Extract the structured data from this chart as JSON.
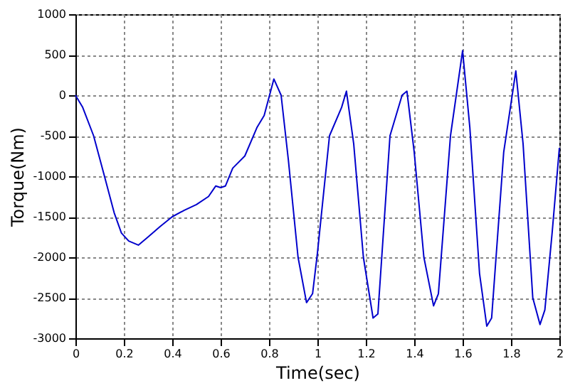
{
  "chart_data": {
    "type": "line",
    "xlabel": "Time(sec)",
    "ylabel": "Torque(Nm)",
    "xlim": [
      0,
      2
    ],
    "xticks": [
      0,
      0.2,
      0.4,
      0.6,
      0.8,
      1,
      1.2,
      1.4,
      1.6,
      1.8,
      2
    ],
    "ylim": [
      -3000,
      1000
    ],
    "yticks": [
      -3000,
      -2500,
      -2000,
      -1500,
      -1000,
      -500,
      0,
      500,
      1000
    ],
    "grid": true,
    "marker": "none",
    "line_style": "solid",
    "series": [
      {
        "color": "#0000cc",
        "x": [
          0,
          0.03,
          0.075,
          0.12,
          0.16,
          0.19,
          0.22,
          0.26,
          0.3,
          0.35,
          0.4,
          0.45,
          0.5,
          0.55,
          0.58,
          0.6,
          0.62,
          0.65,
          0.7,
          0.75,
          0.78,
          0.82,
          0.85,
          0.88,
          0.92,
          0.955,
          0.98,
          1.0,
          1.05,
          1.1,
          1.12,
          1.15,
          1.19,
          1.23,
          1.25,
          1.3,
          1.35,
          1.37,
          1.4,
          1.44,
          1.48,
          1.5,
          1.55,
          1.6,
          1.63,
          1.67,
          1.7,
          1.72,
          1.77,
          1.82,
          1.85,
          1.89,
          1.92,
          1.94,
          1.97,
          2.0
        ],
        "values": [
          0,
          -150,
          -500,
          -1000,
          -1450,
          -1700,
          -1800,
          -1850,
          -1750,
          -1620,
          -1500,
          -1420,
          -1350,
          -1250,
          -1120,
          -1140,
          -1120,
          -900,
          -750,
          -400,
          -250,
          200,
          0,
          -800,
          -2000,
          -2560,
          -2450,
          -1950,
          -500,
          -150,
          50,
          -600,
          -2000,
          -2750,
          -2700,
          -500,
          0,
          50,
          -700,
          -2000,
          -2600,
          -2450,
          -500,
          550,
          -400,
          -2200,
          -2850,
          -2750,
          -700,
          300,
          -600,
          -2500,
          -2830,
          -2650,
          -1700,
          -650
        ]
      }
    ]
  }
}
